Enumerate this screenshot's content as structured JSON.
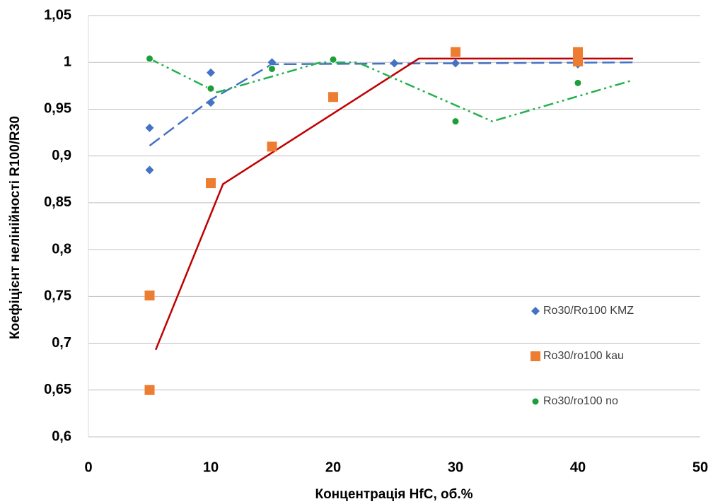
{
  "chart_data": {
    "type": "scatter",
    "xlabel": "Концентрація HfC, об.%",
    "ylabel": "Коефіцієнт нелінійності R100/R30",
    "xlim": [
      0,
      50
    ],
    "xticks": [
      0,
      10,
      20,
      30,
      40,
      50
    ],
    "ylim": [
      0.6,
      1.05
    ],
    "yticks": [
      {
        "value": 0.6,
        "label": "0,6"
      },
      {
        "value": 0.65,
        "label": "0,65"
      },
      {
        "value": 0.7,
        "label": "0,7"
      },
      {
        "value": 0.75,
        "label": "0,75"
      },
      {
        "value": 0.8,
        "label": "0,8"
      },
      {
        "value": 0.85,
        "label": "0,85"
      },
      {
        "value": 0.9,
        "label": "0,9"
      },
      {
        "value": 0.95,
        "label": "0,95"
      },
      1,
      {
        "value": 1.05,
        "label": "1,05"
      }
    ],
    "grid": true,
    "legend": "right",
    "series": [
      {
        "name": "Ro30/Ro100 KMZ",
        "color": "#4472c4",
        "marker": "diamond",
        "x": [
          5,
          5,
          10,
          10,
          15,
          25,
          30,
          40
        ],
        "values": [
          0.93,
          0.885,
          0.989,
          0.957,
          1.0,
          0.999,
          0.999,
          0.998
        ],
        "trend": {
          "style": "dashed",
          "color": "#4472c4",
          "x": [
            5,
            10,
            15,
            44.5
          ],
          "values": [
            0.911,
            0.96,
            0.998,
            1.0
          ]
        }
      },
      {
        "name": "Ro30/ro100 kau",
        "color": "#ed7d31",
        "marker": "square",
        "x": [
          5,
          5,
          10,
          15,
          20,
          30,
          40,
          40
        ],
        "values": [
          0.751,
          0.65,
          0.871,
          0.91,
          0.963,
          1.011,
          1.011,
          1.001
        ],
        "trend": {
          "style": "solid",
          "color": "#c00000",
          "x": [
            5.5,
            11,
            27,
            44.5
          ],
          "values": [
            0.693,
            0.87,
            1.004,
            1.004
          ]
        }
      },
      {
        "name": "Ro30/ro100 no",
        "color": "#1e9e3a",
        "marker": "circle",
        "x": [
          5,
          10,
          15,
          20,
          30,
          40
        ],
        "values": [
          1.004,
          0.972,
          0.993,
          1.003,
          0.937,
          0.978
        ],
        "trend": {
          "style": "dashdot",
          "color": "#22b14c",
          "x": [
            5,
            10.5,
            19,
            22,
            33,
            44.5
          ],
          "values": [
            1.004,
            0.968,
            1.0,
            1.0,
            0.937,
            0.981
          ]
        }
      }
    ]
  }
}
